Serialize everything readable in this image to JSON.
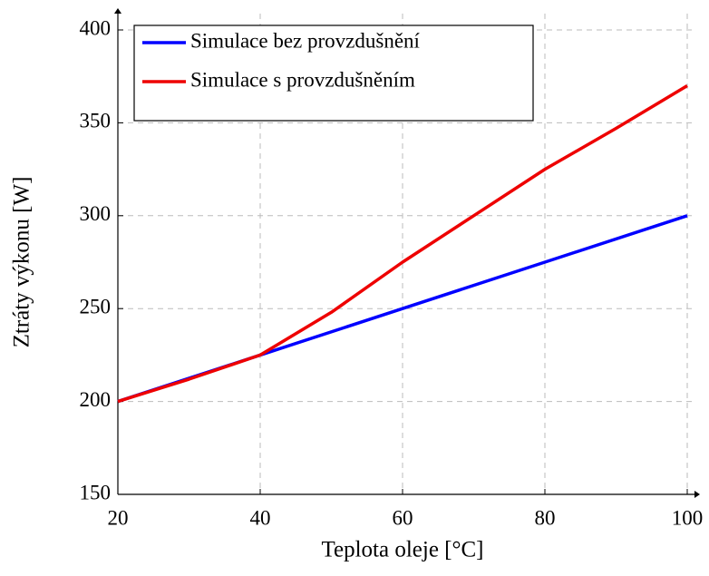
{
  "chart_data": {
    "type": "line",
    "xlabel": "Teplota oleje [°C]",
    "ylabel": "Ztráty výkonu [W]",
    "series": [
      {
        "name": "Simulace bez provzdušnění",
        "color": "#0000ff",
        "x": [
          20,
          40,
          60,
          80,
          100
        ],
        "values": [
          200,
          225,
          250,
          275,
          300
        ]
      },
      {
        "name": "Simulace s provzdušněním",
        "color": "#ee0000",
        "x": [
          20,
          30,
          40,
          50,
          60,
          70,
          80,
          90,
          100
        ],
        "values": [
          200,
          212,
          225,
          248,
          275,
          300,
          325,
          347,
          370
        ]
      }
    ],
    "xlim": [
      20,
      100
    ],
    "xticks": [
      20,
      40,
      60,
      80,
      100
    ],
    "ylim": [
      150,
      400
    ],
    "yticks": [
      150,
      200,
      250,
      300,
      350,
      400
    ],
    "grid": true,
    "legend": "upper left"
  }
}
